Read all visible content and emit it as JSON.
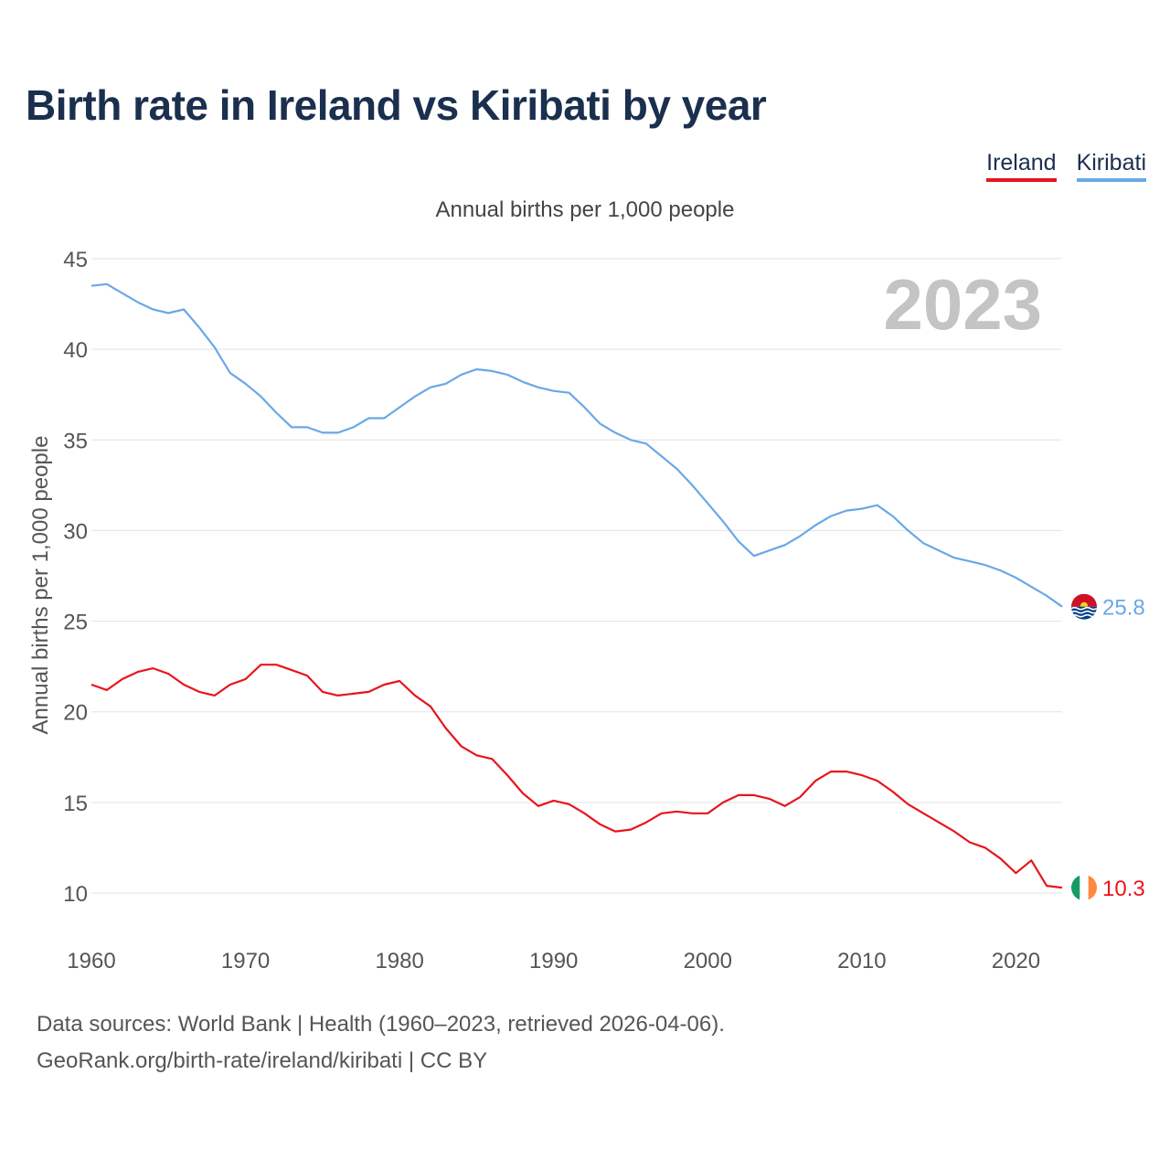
{
  "title": "Birth rate in Ireland vs Kiribati by year",
  "subtitle": "Annual births per 1,000 people",
  "legend": {
    "ireland": "Ireland",
    "kiribati": "Kiribati"
  },
  "watermark_year": "2023",
  "colors": {
    "ireland": "#e8141c",
    "kiribati": "#6aa8e6",
    "title": "#1b2f4e",
    "watermark": "#c4c4c4"
  },
  "source": {
    "line1": "Data sources: World Bank | Health (1960–2023, retrieved 2026-04-06).",
    "line2": "GeoRank.org/birth-rate/ireland/kiribati | CC BY"
  },
  "chart_data": {
    "type": "line",
    "title": "Birth rate in Ireland vs Kiribati by year",
    "xlabel": "",
    "ylabel": "Annual births per 1,000 people",
    "xlim": [
      1960,
      2023
    ],
    "ylim": [
      8,
      45
    ],
    "yticks": [
      10,
      15,
      20,
      25,
      30,
      35,
      40,
      45
    ],
    "xticks": [
      1960,
      1970,
      1980,
      1990,
      2000,
      2010,
      2020
    ],
    "grid": true,
    "x": [
      1960,
      1961,
      1962,
      1963,
      1964,
      1965,
      1966,
      1967,
      1968,
      1969,
      1970,
      1971,
      1972,
      1973,
      1974,
      1975,
      1976,
      1977,
      1978,
      1979,
      1980,
      1981,
      1982,
      1983,
      1984,
      1985,
      1986,
      1987,
      1988,
      1989,
      1990,
      1991,
      1992,
      1993,
      1994,
      1995,
      1996,
      1997,
      1998,
      1999,
      2000,
      2001,
      2002,
      2003,
      2004,
      2005,
      2006,
      2007,
      2008,
      2009,
      2010,
      2011,
      2012,
      2013,
      2014,
      2015,
      2016,
      2017,
      2018,
      2019,
      2020,
      2021,
      2022,
      2023
    ],
    "series": [
      {
        "name": "Ireland",
        "end_label": "10.3",
        "values": [
          21.5,
          21.2,
          21.8,
          22.2,
          22.4,
          22.1,
          21.5,
          21.1,
          20.9,
          21.5,
          21.8,
          22.6,
          22.6,
          22.3,
          22.0,
          21.1,
          20.9,
          21.0,
          21.1,
          21.5,
          21.7,
          20.9,
          20.3,
          19.1,
          18.1,
          17.6,
          17.4,
          16.5,
          15.5,
          14.8,
          15.1,
          14.9,
          14.4,
          13.8,
          13.4,
          13.5,
          13.9,
          14.4,
          14.5,
          14.4,
          14.4,
          15.0,
          15.4,
          15.4,
          15.2,
          14.8,
          15.3,
          16.2,
          16.7,
          16.7,
          16.5,
          16.2,
          15.6,
          14.9,
          14.4,
          13.9,
          13.4,
          12.8,
          12.5,
          11.9,
          11.1,
          11.8,
          10.4,
          10.3
        ]
      },
      {
        "name": "Kiribati",
        "end_label": "25.8",
        "values": [
          43.5,
          43.6,
          43.1,
          42.6,
          42.2,
          42.0,
          42.2,
          41.2,
          40.1,
          38.7,
          38.1,
          37.4,
          36.5,
          35.7,
          35.7,
          35.4,
          35.4,
          35.7,
          36.2,
          36.2,
          36.8,
          37.4,
          37.9,
          38.1,
          38.6,
          38.9,
          38.8,
          38.6,
          38.2,
          37.9,
          37.7,
          37.6,
          36.8,
          35.9,
          35.4,
          35.0,
          34.8,
          34.1,
          33.4,
          32.5,
          31.5,
          30.5,
          29.4,
          28.6,
          28.9,
          29.2,
          29.7,
          30.3,
          30.8,
          31.1,
          31.2,
          31.4,
          30.8,
          30.0,
          29.3,
          28.9,
          28.5,
          28.3,
          28.1,
          27.8,
          27.4,
          26.9,
          26.4,
          25.8
        ]
      }
    ]
  }
}
